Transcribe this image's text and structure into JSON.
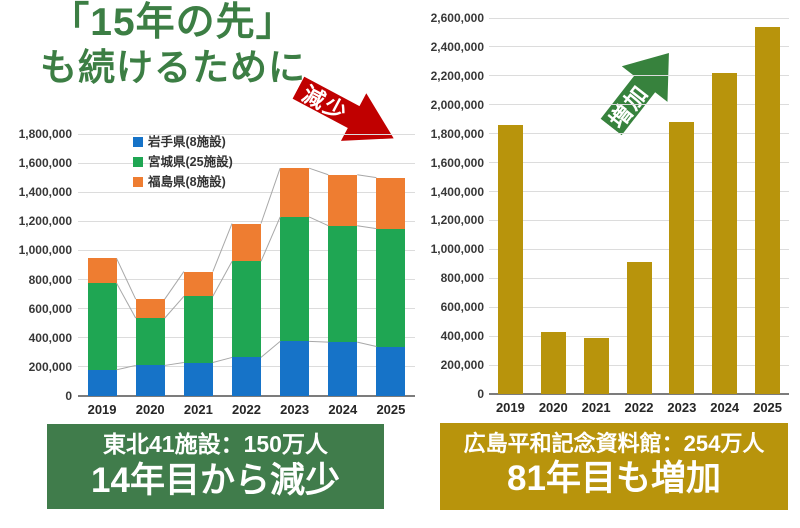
{
  "title": {
    "line1": "「15年の先」",
    "line2": "も続けるために"
  },
  "annotations": {
    "decrease": "減少",
    "increase": "増加"
  },
  "captions": {
    "left": {
      "line1": "東北41施設：150万人",
      "line2": "14年目から減少"
    },
    "right": {
      "line1": "広島平和記念資料館：254万人",
      "line2": "81年目も増加"
    }
  },
  "colors": {
    "title_green": "#3c7e44",
    "decrease_arrow_red": "#c00000",
    "increase_arrow_green": "#37823d",
    "caption_left_bg": "#407c4b",
    "caption_right_bg": "#b8940c",
    "iwate_blue": "#1673c8",
    "miyagi_green": "#1fa653",
    "fukushima_orange": "#ee7d31",
    "hiroshima_gold": "#b8940c",
    "gridline_grey": "#dcdcdc",
    "series_line_grey": "#a8a8a8"
  },
  "chart_data": [
    {
      "type": "bar",
      "stacked": true,
      "title": "",
      "xlabel": "",
      "ylabel": "",
      "categories": [
        "2019",
        "2020",
        "2021",
        "2022",
        "2023",
        "2024",
        "2025"
      ],
      "series": [
        {
          "name": "岩手県(8施設)",
          "color": "#1673c8",
          "values": [
            180000,
            210000,
            230000,
            265000,
            375000,
            370000,
            340000
          ]
        },
        {
          "name": "宮城県(25施設)",
          "color": "#1fa653",
          "values": [
            595000,
            325000,
            455000,
            660000,
            855000,
            800000,
            810000
          ]
        },
        {
          "name": "福島県(8施設)",
          "color": "#ee7d31",
          "values": [
            170000,
            130000,
            170000,
            260000,
            335000,
            350000,
            350000
          ]
        }
      ],
      "totals": [
        945000,
        665000,
        855000,
        1185000,
        1565000,
        1520000,
        1500000
      ],
      "ylim": [
        0,
        1800000
      ],
      "ytick_step": 200000,
      "grid": true,
      "series_lines": true,
      "legend": {
        "show": true,
        "position": "inside-top-left"
      }
    },
    {
      "type": "bar",
      "stacked": false,
      "title": "",
      "xlabel": "",
      "ylabel": "",
      "categories": [
        "2019",
        "2020",
        "2021",
        "2022",
        "2023",
        "2024",
        "2025"
      ],
      "series": [
        {
          "name": "広島平和記念資料館",
          "color": "#b8940c",
          "values": [
            1860000,
            430000,
            385000,
            910000,
            1880000,
            2220000,
            2540000
          ]
        }
      ],
      "ylim": [
        0,
        2600000
      ],
      "ytick_step": 200000,
      "grid": true,
      "series_lines": false,
      "legend": {
        "show": false
      }
    }
  ]
}
